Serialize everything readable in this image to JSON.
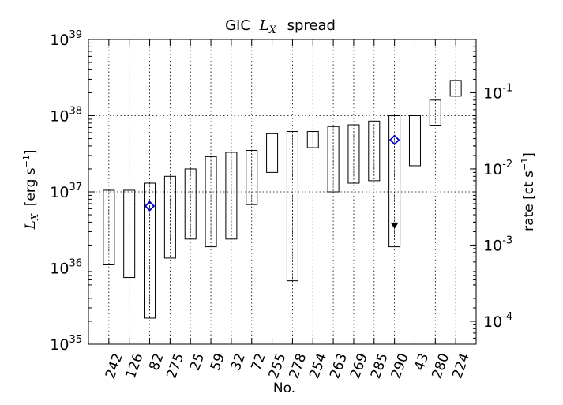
{
  "chart_data": {
    "type": "bar",
    "title_prefix": "GIC",
    "title_var": "L",
    "title_sub": "X",
    "title_suffix": "spread",
    "xlabel": "No.",
    "ylabel_var": "L",
    "ylabel_sub": "X",
    "ylabel_units": "[erg s",
    "ylabel_exp": "−1",
    "ylabel_close": "]",
    "y2label_units": "rate [ct s",
    "y2label_exp": "−1",
    "y2label_close": "]",
    "y_scale": "log",
    "ylim": [
      1e+35,
      1e+39
    ],
    "y_ticks": [
      {
        "base": "10",
        "exp": "35",
        "value": 1e+35
      },
      {
        "base": "10",
        "exp": "36",
        "value": 1e+36
      },
      {
        "base": "10",
        "exp": "37",
        "value": 1e+37
      },
      {
        "base": "10",
        "exp": "38",
        "value": 1e+38
      },
      {
        "base": "10",
        "exp": "39",
        "value": 1e+39
      }
    ],
    "y2_scale": "log",
    "y2_ticks": [
      {
        "base": "10",
        "exp": "-4",
        "value": 0.0001
      },
      {
        "base": "10",
        "exp": "-3",
        "value": 0.001
      },
      {
        "base": "10",
        "exp": "-2",
        "value": 0.01
      },
      {
        "base": "10",
        "exp": "-1",
        "value": 0.1
      }
    ],
    "y2_reference": {
      "lx": 1e+35,
      "rate": 5e-05
    },
    "grid": true,
    "categories": [
      "242",
      "126",
      "82",
      "275",
      "25",
      "59",
      "32",
      "72",
      "255",
      "278",
      "254",
      "263",
      "269",
      "285",
      "290",
      "43",
      "280",
      "224"
    ],
    "low": [
      1.1e+36,
      7.5e+35,
      2.2e+35,
      1.35e+36,
      2.4e+36,
      1.9e+36,
      2.4e+36,
      6.8e+36,
      1.8e+37,
      6.8e+35,
      3.8e+37,
      1e+37,
      1.3e+37,
      1.4e+37,
      1.9e+36,
      2.2e+37,
      7.5e+37,
      1.8e+38
    ],
    "high": [
      1.05e+37,
      1.05e+37,
      1.3e+37,
      1.6e+37,
      2e+37,
      2.9e+37,
      3.3e+37,
      3.5e+37,
      5.8e+37,
      6.2e+37,
      6.2e+37,
      7.2e+37,
      7.6e+37,
      8.5e+37,
      1e+38,
      1e+38,
      1.6e+38,
      2.9e+38
    ],
    "points": [
      {
        "category": "82",
        "value": 6.5e+36,
        "marker": "diamond",
        "color": "#0000cc"
      },
      {
        "category": "290",
        "value": 4.8e+37,
        "marker": "diamond",
        "color": "#0000cc"
      }
    ],
    "upper_limits": [
      {
        "category": "290",
        "value": 3.6e+36,
        "marker": "triangle-down",
        "color": "#000000"
      }
    ]
  }
}
